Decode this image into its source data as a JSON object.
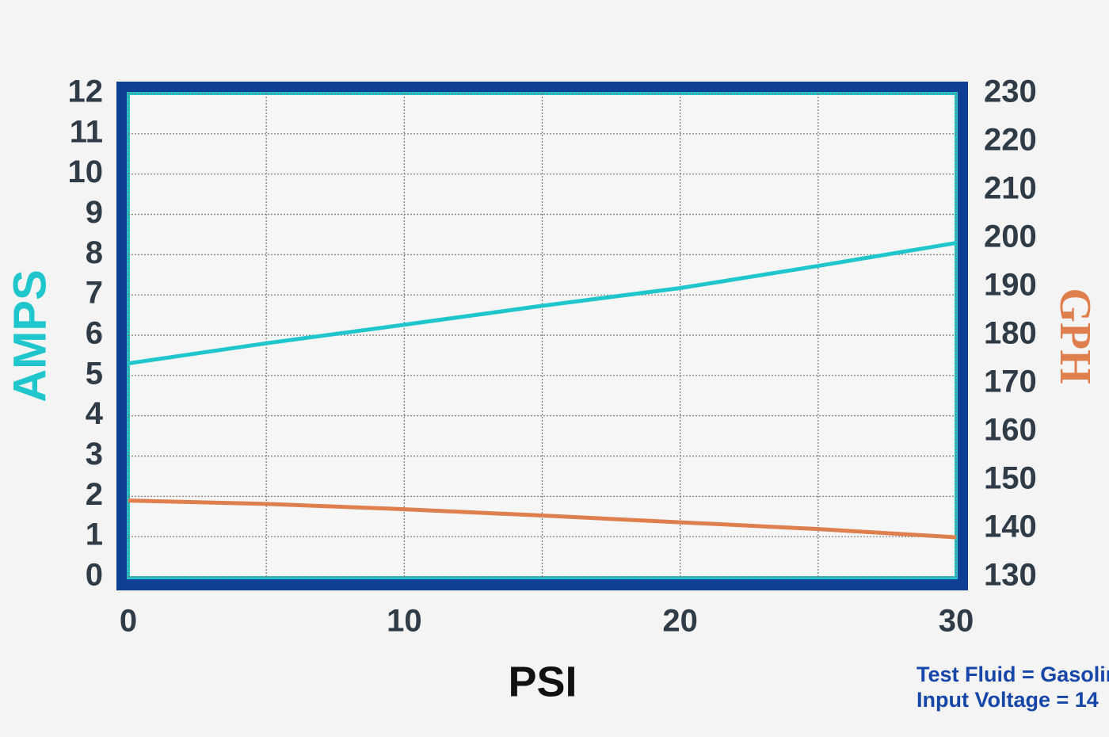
{
  "chart_data": {
    "type": "line",
    "xlabel": "PSI",
    "ylabel": "AMPS",
    "y2label": "GPH",
    "x": [
      0,
      5,
      10,
      15,
      20,
      25,
      30
    ],
    "series": [
      {
        "color": "#1fc7cc",
        "values": [
          5.3,
          5.8,
          6.26,
          6.73,
          7.17,
          7.72,
          8.29
        ]
      },
      {
        "color": "#e07f4e",
        "axis": "y2",
        "values": [
          145.8,
          145.1,
          144.0,
          142.7,
          141.3,
          139.9,
          138.2
        ]
      }
    ],
    "xlim": [
      0,
      30
    ],
    "xticks": [
      0,
      10,
      20,
      30
    ],
    "x_minor_ticks": [
      5,
      15,
      25
    ],
    "ylim": [
      0,
      12
    ],
    "yticks": [
      0,
      1,
      2,
      3,
      4,
      5,
      6,
      7,
      8,
      9,
      10,
      11,
      12
    ],
    "y2lim": [
      130,
      230
    ],
    "y2ticks": [
      130,
      140,
      150,
      160,
      170,
      180,
      190,
      200,
      210,
      220,
      230
    ],
    "grid": true,
    "annotations": [
      "Test Fluid = Gasoline",
      "Input Voltage = 14"
    ]
  }
}
